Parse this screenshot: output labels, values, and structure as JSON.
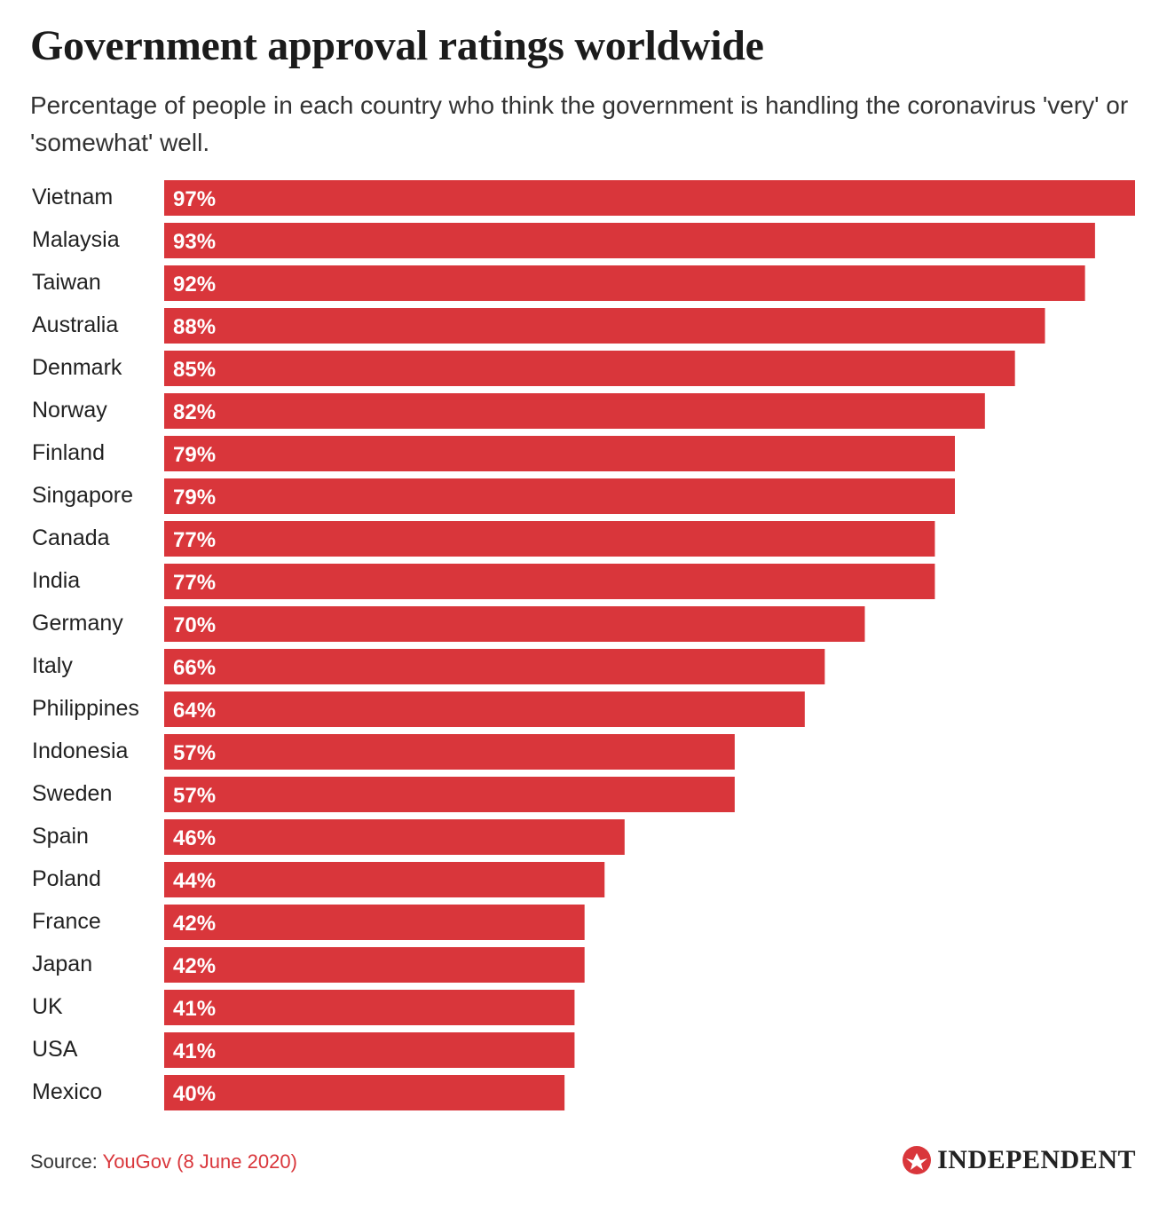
{
  "chart_data": {
    "type": "bar",
    "orientation": "horizontal",
    "title": "Government approval ratings worldwide",
    "subtitle": "Percentage of people in each country who think the government is handling the coronavirus 'very' or 'somewhat' well.",
    "categories": [
      "Vietnam",
      "Malaysia",
      "Taiwan",
      "Australia",
      "Denmark",
      "Norway",
      "Finland",
      "Singapore",
      "Canada",
      "India",
      "Germany",
      "Italy",
      "Philippines",
      "Indonesia",
      "Sweden",
      "Spain",
      "Poland",
      "France",
      "Japan",
      "UK",
      "USA",
      "Mexico"
    ],
    "values": [
      97,
      93,
      92,
      88,
      85,
      82,
      79,
      79,
      77,
      77,
      70,
      66,
      64,
      57,
      57,
      46,
      44,
      42,
      42,
      41,
      41,
      40
    ],
    "value_suffix": "%",
    "xlim": [
      0,
      97
    ],
    "bar_color": "#d9363b"
  },
  "footer": {
    "source_label": "Source:",
    "source_name": "YouGov (8 June 2020)"
  },
  "brand": {
    "name": "INDEPENDENT",
    "logo_icon": "eagle-icon",
    "color": "#d9363b"
  }
}
